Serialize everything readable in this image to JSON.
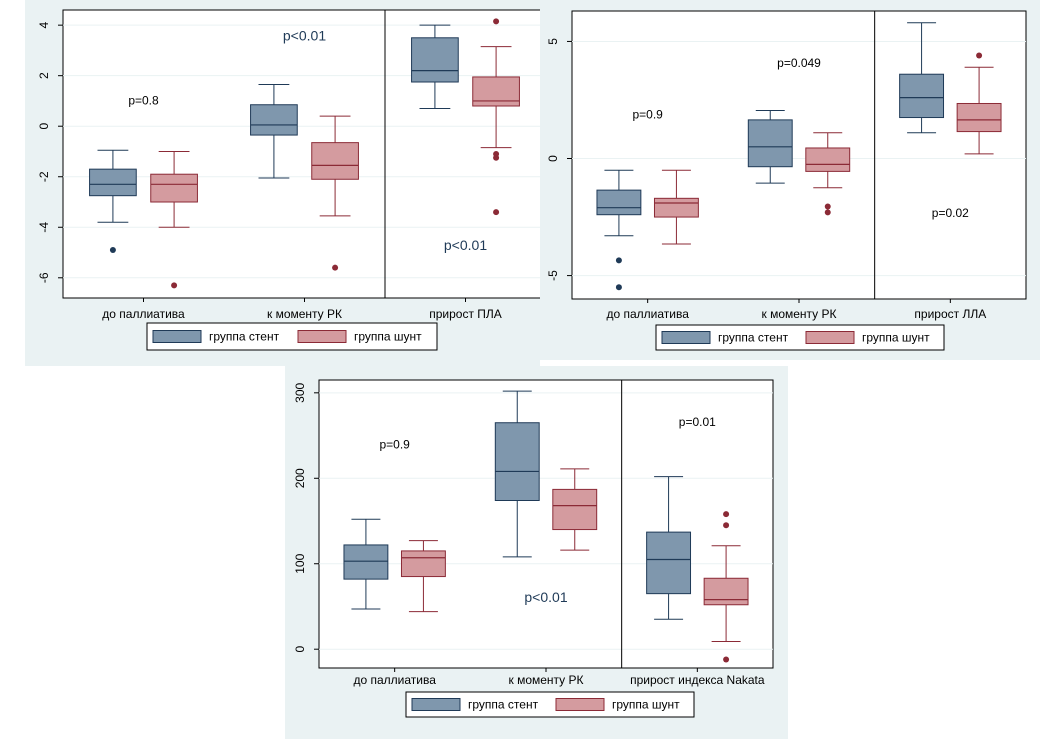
{
  "chart_data": [
    {
      "type": "box",
      "categories": [
        "до паллиатива",
        "к моменту РК",
        "прирост ПЛА"
      ],
      "ylim": [
        -6.8,
        4.6
      ],
      "yticks": [
        "4",
        "2",
        "0",
        "-2",
        "-4",
        "-6"
      ],
      "ytick_values": [
        4,
        2,
        0,
        -2,
        -4,
        -6
      ],
      "separator_after_category": 1,
      "grid": true,
      "legend_position": "bottom",
      "series": [
        {
          "name": "группа стент",
          "color": "#7f97ad",
          "stroke": "#1f3a57",
          "boxes": [
            {
              "whisker_low": -3.8,
              "q1": -2.75,
              "median": -2.3,
              "q3": -1.7,
              "whisker_high": -0.95,
              "outliers": [
                -4.9
              ]
            },
            {
              "whisker_low": -2.05,
              "q1": -0.35,
              "median": 0.05,
              "q3": 0.85,
              "whisker_high": 1.65,
              "outliers": []
            },
            {
              "whisker_low": 0.7,
              "q1": 1.75,
              "median": 2.2,
              "q3": 3.5,
              "whisker_high": 4.0,
              "outliers": []
            }
          ]
        },
        {
          "name": "группа шунт",
          "color": "#d49b9f",
          "stroke": "#8b2a36",
          "boxes": [
            {
              "whisker_low": -4.0,
              "q1": -3.0,
              "median": -2.3,
              "q3": -1.9,
              "whisker_high": -1.0,
              "outliers": [
                -6.3
              ]
            },
            {
              "whisker_low": -3.55,
              "q1": -2.1,
              "median": -1.55,
              "q3": -0.65,
              "whisker_high": 0.4,
              "outliers": [
                -5.6
              ]
            },
            {
              "whisker_low": -0.85,
              "q1": 0.8,
              "median": 1.0,
              "q3": 1.95,
              "whisker_high": 3.15,
              "outliers": [
                4.15,
                -1.1,
                -1.25,
                -3.4
              ]
            }
          ]
        }
      ],
      "annotations": [
        {
          "text": "p=0.8",
          "x_cat": 0.5,
          "y": 0.85,
          "size": 12
        },
        {
          "text": "p<0.01",
          "x_cat": 1.5,
          "y": 3.4,
          "size": 14
        },
        {
          "text": "p<0.01",
          "x_cat": 2.5,
          "y": -4.9,
          "size": 14
        }
      ]
    },
    {
      "type": "box",
      "categories": [
        "до паллиатива",
        "к моменту РК",
        "прирост ЛЛА"
      ],
      "ylim": [
        -6,
        6.3
      ],
      "yticks": [
        "5",
        "0",
        "-5"
      ],
      "ytick_values": [
        5,
        0,
        -5
      ],
      "separator_after_category": 1,
      "grid": true,
      "legend_position": "bottom",
      "series": [
        {
          "name": "группа стент",
          "color": "#7f97ad",
          "stroke": "#1f3a57",
          "boxes": [
            {
              "whisker_low": -3.3,
              "q1": -2.4,
              "median": -2.1,
              "q3": -1.35,
              "whisker_high": -0.5,
              "outliers": [
                -4.35,
                -5.5
              ]
            },
            {
              "whisker_low": -1.05,
              "q1": -0.35,
              "median": 0.5,
              "q3": 1.65,
              "whisker_high": 2.05,
              "outliers": []
            },
            {
              "whisker_low": 1.1,
              "q1": 1.75,
              "median": 2.6,
              "q3": 3.6,
              "whisker_high": 5.8,
              "outliers": []
            }
          ]
        },
        {
          "name": "группа шунт",
          "color": "#d49b9f",
          "stroke": "#8b2a36",
          "boxes": [
            {
              "whisker_low": -3.65,
              "q1": -2.5,
              "median": -1.9,
              "q3": -1.7,
              "whisker_high": -0.5,
              "outliers": []
            },
            {
              "whisker_low": -1.25,
              "q1": -0.55,
              "median": -0.25,
              "q3": 0.45,
              "whisker_high": 1.1,
              "outliers": [
                -2.05,
                -2.3
              ]
            },
            {
              "whisker_low": 0.2,
              "q1": 1.15,
              "median": 1.65,
              "q3": 2.35,
              "whisker_high": 3.9,
              "outliers": [
                4.4
              ]
            }
          ]
        }
      ],
      "annotations": [
        {
          "text": "p=0.9",
          "x_cat": 0.5,
          "y": 1.7,
          "size": 12
        },
        {
          "text": "p=0.049",
          "x_cat": 1.5,
          "y": 3.9,
          "size": 12
        },
        {
          "text": "p=0.02",
          "x_cat": 2.5,
          "y": -2.5,
          "size": 12
        }
      ]
    },
    {
      "type": "box",
      "categories": [
        "до паллиатива",
        "к моменту РК",
        "прирост индекса Nakata"
      ],
      "ylim": [
        -22,
        315
      ],
      "yticks": [
        "300",
        "200",
        "100",
        "0"
      ],
      "ytick_values": [
        300,
        200,
        100,
        0
      ],
      "separator_after_category": 1,
      "grid": true,
      "legend_position": "bottom",
      "series": [
        {
          "name": "группа стент",
          "color": "#7f97ad",
          "stroke": "#1f3a57",
          "boxes": [
            {
              "whisker_low": 47,
              "q1": 82,
              "median": 103,
              "q3": 122,
              "whisker_high": 152,
              "outliers": []
            },
            {
              "whisker_low": 108,
              "q1": 174,
              "median": 208,
              "q3": 265,
              "whisker_high": 302,
              "outliers": []
            },
            {
              "whisker_low": 35,
              "q1": 65,
              "median": 105,
              "q3": 137,
              "whisker_high": 202,
              "outliers": []
            }
          ]
        },
        {
          "name": "группа шунт",
          "color": "#d49b9f",
          "stroke": "#8b2a36",
          "boxes": [
            {
              "whisker_low": 44,
              "q1": 85,
              "median": 107,
              "q3": 115,
              "whisker_high": 127,
              "outliers": []
            },
            {
              "whisker_low": 116,
              "q1": 140,
              "median": 168,
              "q3": 187,
              "whisker_high": 211,
              "outliers": []
            },
            {
              "whisker_low": 9,
              "q1": 52,
              "median": 58,
              "q3": 83,
              "whisker_high": 121,
              "outliers": [
                158,
                145,
                -12
              ]
            }
          ]
        }
      ],
      "annotations": [
        {
          "text": "p=0.9",
          "x_cat": 0.5,
          "y": 235,
          "size": 12
        },
        {
          "text": "p<0.01",
          "x_cat": 1.5,
          "y": 55,
          "size": 14
        },
        {
          "text": "p=0.01",
          "x_cat": 2.5,
          "y": 261,
          "size": 12
        }
      ]
    }
  ]
}
